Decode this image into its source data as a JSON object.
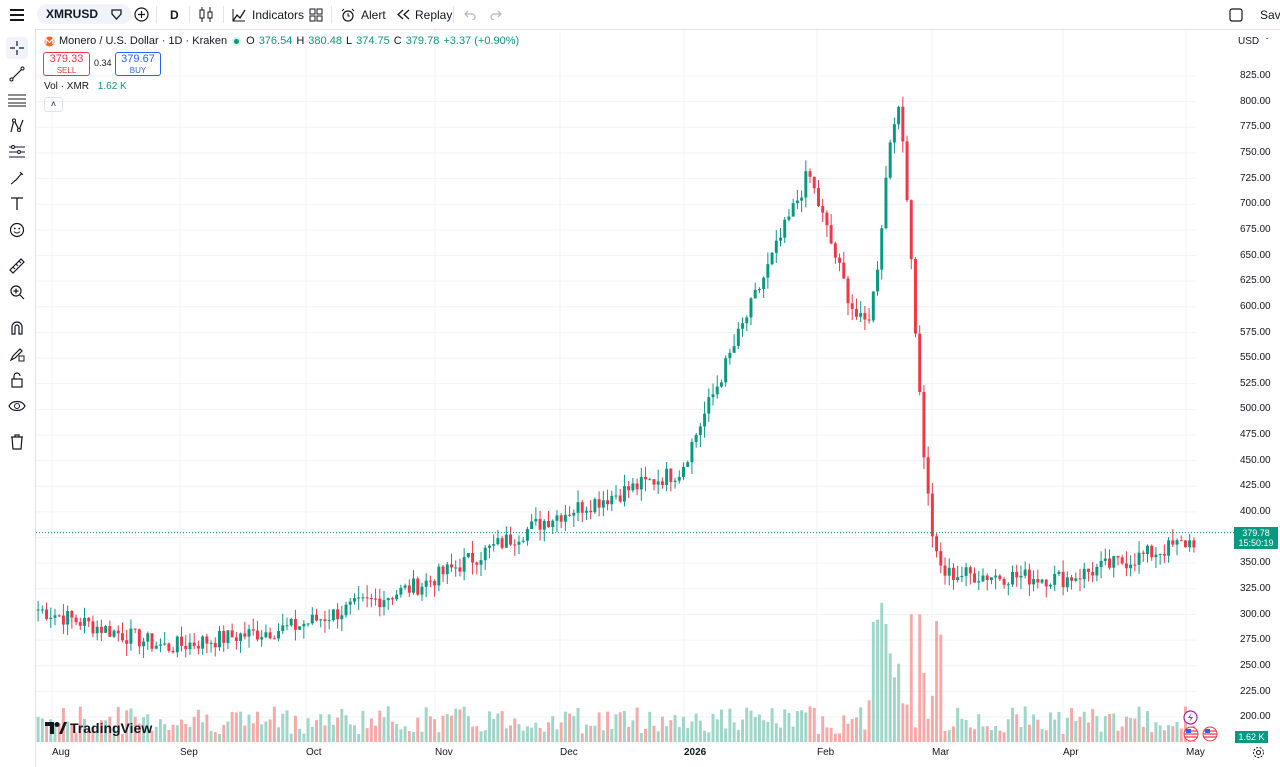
{
  "toolbar": {
    "symbol": "XMRUSD",
    "interval": "D",
    "indicators_label": "Indicators",
    "alert_label": "Alert",
    "replay_label": "Replay",
    "save_label": "Save"
  },
  "legend": {
    "title": "Monero / U.S. Dollar · 1D · Kraken",
    "open_label": "O",
    "open": "376.54",
    "high_label": "H",
    "high": "380.48",
    "low_label": "L",
    "low": "374.75",
    "close_label": "C",
    "close": "379.78",
    "change": "+3.37 (+0.90%)"
  },
  "trade": {
    "sell_price": "379.33",
    "sell_label": "SELL",
    "spread": "0.34",
    "buy_price": "379.67",
    "buy_label": "BUY"
  },
  "volume_legend": {
    "label": "Vol · XMR",
    "value": "1.62 K"
  },
  "price_scale": {
    "currency": "USD",
    "current_price": "379.78",
    "countdown": "15:50:19",
    "volume_tag": "1.62 K",
    "ticks": [
      "825.00",
      "800.00",
      "775.00",
      "750.00",
      "725.00",
      "700.00",
      "675.00",
      "650.00",
      "625.00",
      "600.00",
      "575.00",
      "550.00",
      "525.00",
      "500.00",
      "475.00",
      "450.00",
      "425.00",
      "400.00",
      "375.00",
      "350.00",
      "325.00",
      "300.00",
      "275.00",
      "250.00",
      "225.00",
      "200.00"
    ]
  },
  "time_scale": {
    "labels": [
      "Aug",
      "Sep",
      "Oct",
      "Nov",
      "Dec",
      "2026",
      "Jan",
      "Feb",
      "Mar",
      "Apr",
      "May"
    ]
  },
  "branding": {
    "logo_text": "TradingView"
  },
  "colors": {
    "up": "#089981",
    "down": "#f23645",
    "up_volume": "#9fd6c7",
    "down_volume": "#f7a9a7"
  },
  "chart_data": {
    "type": "candlestick",
    "title": "Monero / U.S. Dollar · 1D · Kraken",
    "ylim": [
      200,
      825
    ],
    "x": [
      "2025-08",
      "2025-09",
      "2025-10",
      "2025-11",
      "2025-12",
      "2026-01",
      "2026-02",
      "2026-03",
      "2026-04",
      "2026-05"
    ],
    "close": [
      305,
      268,
      288,
      330,
      395,
      440,
      730,
      340,
      335,
      372
    ],
    "high": [
      332,
      300,
      350,
      470,
      440,
      500,
      800,
      500,
      380,
      407
    ],
    "low": [
      240,
      255,
      265,
      300,
      320,
      360,
      380,
      288,
      310,
      315
    ],
    "last_close": 379.78
  }
}
